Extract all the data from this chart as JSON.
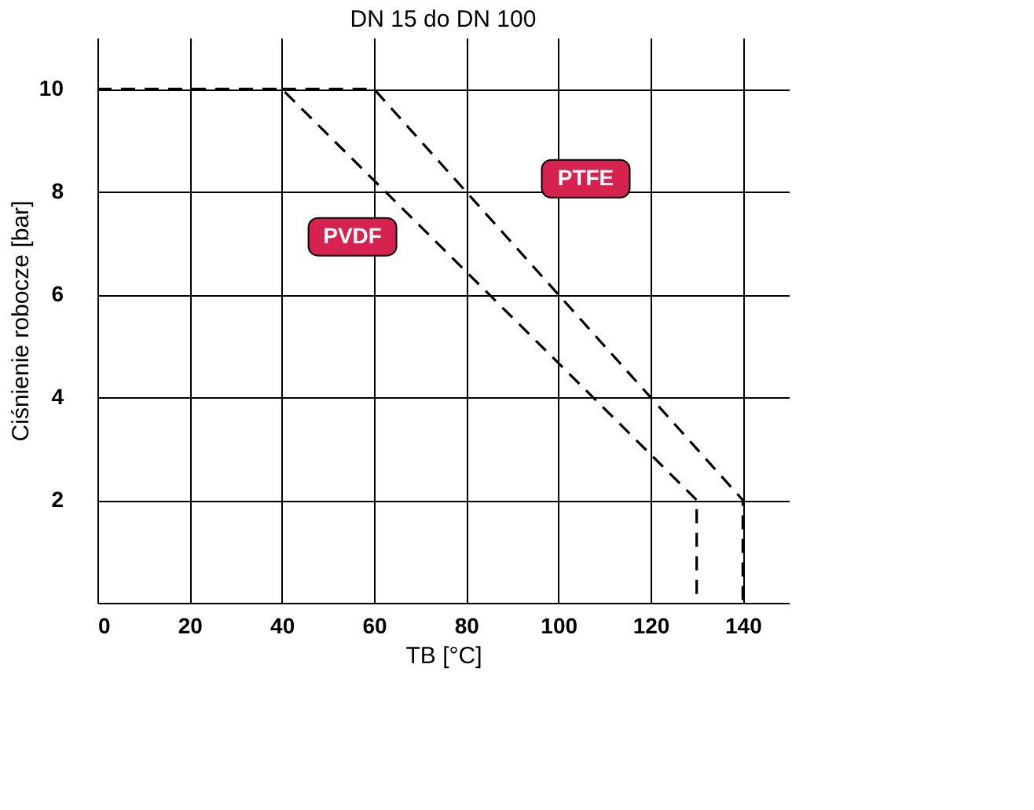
{
  "chart_data": {
    "type": "line",
    "title": "DN 15 do DN 100",
    "xlabel": "TB [°C]",
    "ylabel": "Ciśnienie robocze [bar]",
    "xlim": [
      0,
      150
    ],
    "ylim": [
      0,
      11
    ],
    "xticks": [
      0,
      20,
      40,
      60,
      80,
      100,
      120,
      140
    ],
    "yticks": [
      2,
      4,
      6,
      8,
      10
    ],
    "grid": true,
    "line_style": "dashed",
    "series": [
      {
        "name": "PTFE",
        "color": "#000000",
        "x": [
          40,
          60,
          140,
          140
        ],
        "values": [
          10,
          10,
          2,
          0
        ]
      },
      {
        "name": "PVDF",
        "color": "#000000",
        "x": [
          0,
          40,
          130,
          130
        ],
        "values": [
          10,
          10,
          2,
          0
        ]
      }
    ]
  }
}
